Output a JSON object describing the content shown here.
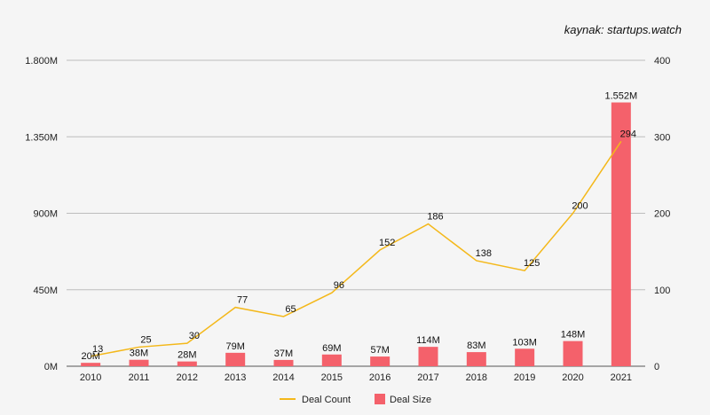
{
  "source_note": "kaynak: startups.watch",
  "colors": {
    "bar": "#f4616b",
    "line": "#f4b81a",
    "grid": "#bdbdbd",
    "background": "#f5f5f5"
  },
  "chart_data": {
    "type": "bar",
    "categories": [
      "2010",
      "2011",
      "2012",
      "2013",
      "2014",
      "2015",
      "2016",
      "2017",
      "2018",
      "2019",
      "2020",
      "2021"
    ],
    "grid": true,
    "legend_position": "bottom-center",
    "y_left": {
      "ylim": [
        0,
        1800
      ],
      "unit": "M",
      "ticks": [
        0,
        450,
        900,
        1350,
        1800
      ],
      "tick_labels": [
        "0M",
        "450M",
        "900M",
        "1.350M",
        "1.800M"
      ]
    },
    "y_right": {
      "ylim": [
        0,
        400
      ],
      "ticks": [
        0,
        100,
        200,
        300,
        400
      ],
      "tick_labels": [
        "0",
        "100",
        "200",
        "300",
        "400"
      ]
    },
    "series": [
      {
        "name": "Deal Size",
        "type": "bar",
        "axis": "left",
        "values": [
          20,
          38,
          28,
          79,
          37,
          69,
          57,
          114,
          83,
          103,
          148,
          1552
        ],
        "data_labels": [
          "20M",
          "38M",
          "28M",
          "79M",
          "37M",
          "69M",
          "57M",
          "114M",
          "83M",
          "103M",
          "148M",
          "1.552M"
        ]
      },
      {
        "name": "Deal Count",
        "type": "line",
        "axis": "right",
        "values": [
          13,
          25,
          30,
          77,
          65,
          96,
          152,
          186,
          138,
          125,
          200,
          294
        ],
        "data_labels": [
          "13",
          "25",
          "30",
          "77",
          "65",
          "96",
          "152",
          "186",
          "138",
          "125",
          "200",
          "294"
        ]
      }
    ]
  }
}
